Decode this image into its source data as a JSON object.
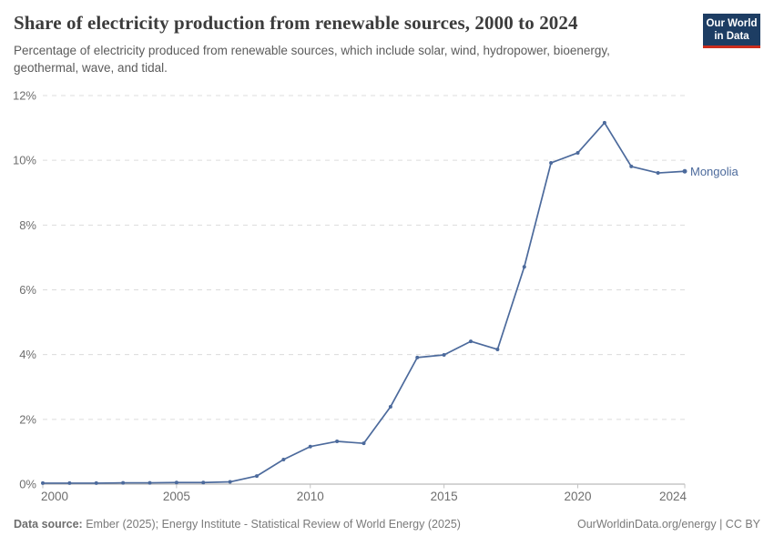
{
  "header": {
    "title": "Share of electricity production from renewable sources, 2000 to 2024",
    "subtitle": "Percentage of electricity produced from renewable sources, which include solar, wind, hydropower, bioenergy, geothermal, wave, and tidal.",
    "logo": {
      "line1": "Our World",
      "line2": "in Data"
    }
  },
  "chart_data": {
    "type": "line",
    "title": "Share of electricity production from renewable sources, 2000 to 2024",
    "xlabel": "",
    "ylabel": "",
    "xlim": [
      2000,
      2024
    ],
    "ylim": [
      0,
      12
    ],
    "grid": "horizontal-dashed",
    "legend_position": "label-at-line-end",
    "x_ticks": [
      2000,
      2005,
      2010,
      2015,
      2020,
      2024
    ],
    "x_tick_labels": [
      "2000",
      "2005",
      "2010",
      "2015",
      "2020",
      "2024"
    ],
    "y_ticks": [
      {
        "value": 0,
        "label": "0%"
      },
      {
        "value": 2,
        "label": "2%"
      },
      {
        "value": 4,
        "label": "4%"
      },
      {
        "value": 6,
        "label": "6%"
      },
      {
        "value": 8,
        "label": "8%"
      },
      {
        "value": 10,
        "label": "10%"
      },
      {
        "value": 12,
        "label": "12%"
      }
    ],
    "x": [
      2000,
      2001,
      2002,
      2003,
      2004,
      2005,
      2006,
      2007,
      2008,
      2009,
      2010,
      2011,
      2012,
      2013,
      2014,
      2015,
      2016,
      2017,
      2018,
      2019,
      2020,
      2021,
      2022,
      2023,
      2024
    ],
    "series": [
      {
        "name": "Mongolia",
        "color": "#4c6a9c",
        "values": [
          0.03,
          0.03,
          0.03,
          0.04,
          0.04,
          0.05,
          0.05,
          0.07,
          0.25,
          0.76,
          1.16,
          1.32,
          1.26,
          2.39,
          3.91,
          3.99,
          4.41,
          4.16,
          6.71,
          9.92,
          10.23,
          11.16,
          9.81,
          9.61,
          9.66
        ]
      }
    ]
  },
  "footer": {
    "datasource_label": "Data source:",
    "datasource_text": "Ember (2025); Energy Institute - Statistical Review of World Energy (2025)",
    "rights": "OurWorldinData.org/energy | CC BY"
  },
  "colors": {
    "line": "#4c6a9c",
    "grid": "#dcdcdc",
    "axis": "#a8a8a8",
    "tick_mark": "#c2c2c2",
    "tick_text": "#6e6e6e",
    "logo_bg": "#1d3d63",
    "logo_bar": "#cb2d1d"
  }
}
